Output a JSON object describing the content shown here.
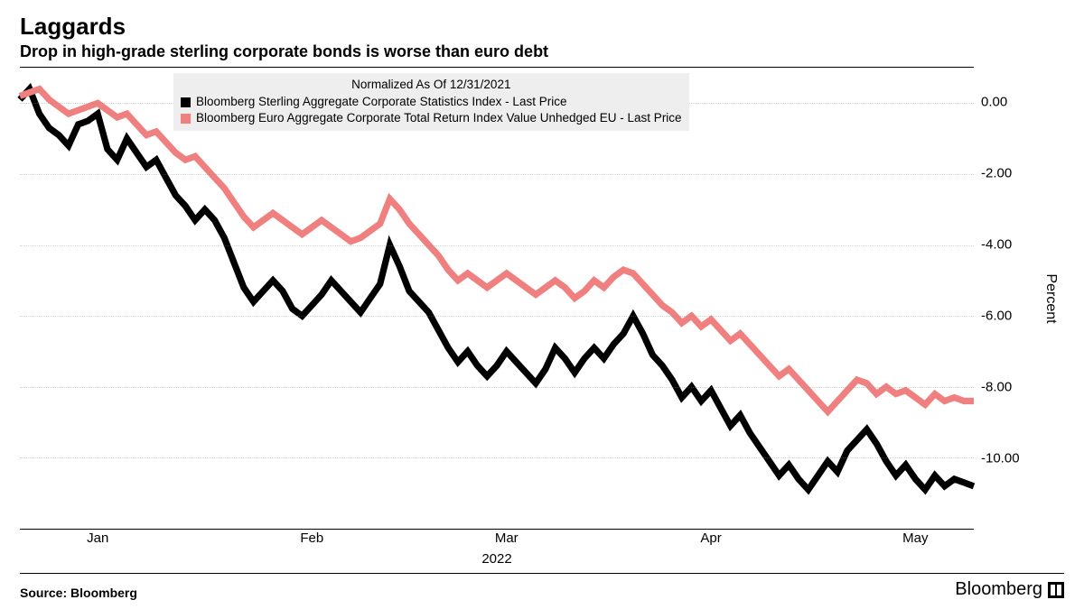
{
  "title": "Laggards",
  "subtitle": "Drop in high-grade sterling corporate bonds is worse than euro debt",
  "legend": {
    "title": "Normalized As Of 12/31/2021",
    "series": [
      {
        "label": "Bloomberg Sterling Aggregate Corporate Statistics Index - Last Price",
        "color": "#000000"
      },
      {
        "label": "Bloomberg Euro Aggregate Corporate Total Return Index Value Unhedged EU - Last Price",
        "color": "#f08080"
      }
    ]
  },
  "chart": {
    "type": "line",
    "y_axis": {
      "label": "Percent",
      "min": -12.0,
      "max": 1.0,
      "ticks": [
        0.0,
        -2.0,
        -4.0,
        -6.0,
        -8.0,
        -10.0
      ],
      "tick_format": "fixed2"
    },
    "x_axis": {
      "min": 0,
      "max": 98,
      "ticks": [
        {
          "pos": 8,
          "label": "Jan"
        },
        {
          "pos": 30,
          "label": "Feb"
        },
        {
          "pos": 50,
          "label": "Mar"
        },
        {
          "pos": 71,
          "label": "Apr"
        },
        {
          "pos": 92,
          "label": "May"
        }
      ],
      "year_label": "2022"
    },
    "grid_color": "#888888",
    "background_color": "#ffffff",
    "series": [
      {
        "name": "sterling",
        "color": "#000000",
        "line_width": 1.8,
        "values": [
          0.1,
          0.4,
          -0.3,
          -0.7,
          -0.9,
          -1.2,
          -0.6,
          -0.5,
          -0.3,
          -1.3,
          -1.6,
          -1.0,
          -1.4,
          -1.8,
          -1.6,
          -2.1,
          -2.6,
          -2.9,
          -3.3,
          -3.0,
          -3.3,
          -3.8,
          -4.5,
          -5.2,
          -5.6,
          -5.3,
          -5.0,
          -5.3,
          -5.8,
          -6.0,
          -5.7,
          -5.4,
          -5.0,
          -5.3,
          -5.6,
          -5.9,
          -5.5,
          -5.1,
          -4.0,
          -4.6,
          -5.3,
          -5.6,
          -5.9,
          -6.4,
          -6.9,
          -7.3,
          -7.0,
          -7.4,
          -7.7,
          -7.4,
          -7.0,
          -7.3,
          -7.6,
          -7.9,
          -7.5,
          -6.9,
          -7.2,
          -7.6,
          -7.2,
          -6.9,
          -7.2,
          -6.8,
          -6.5,
          -6.0,
          -6.5,
          -7.1,
          -7.4,
          -7.8,
          -8.3,
          -8.0,
          -8.4,
          -8.1,
          -8.6,
          -9.1,
          -8.8,
          -9.3,
          -9.7,
          -10.1,
          -10.5,
          -10.2,
          -10.6,
          -10.9,
          -10.5,
          -10.1,
          -10.4,
          -9.8,
          -9.5,
          -9.2,
          -9.6,
          -10.1,
          -10.5,
          -10.2,
          -10.6,
          -10.9,
          -10.5,
          -10.8,
          -10.6,
          -10.7,
          -10.8
        ]
      },
      {
        "name": "euro",
        "color": "#f08080",
        "line_width": 1.8,
        "values": [
          0.2,
          0.3,
          0.4,
          0.1,
          -0.1,
          -0.3,
          -0.2,
          -0.1,
          0.0,
          -0.2,
          -0.4,
          -0.3,
          -0.6,
          -0.9,
          -0.8,
          -1.1,
          -1.4,
          -1.6,
          -1.5,
          -1.8,
          -2.1,
          -2.4,
          -2.8,
          -3.2,
          -3.5,
          -3.3,
          -3.1,
          -3.3,
          -3.5,
          -3.7,
          -3.5,
          -3.3,
          -3.5,
          -3.7,
          -3.9,
          -3.8,
          -3.6,
          -3.4,
          -2.7,
          -3.0,
          -3.4,
          -3.7,
          -4.0,
          -4.3,
          -4.7,
          -5.0,
          -4.8,
          -5.0,
          -5.2,
          -5.0,
          -4.8,
          -5.0,
          -5.2,
          -5.4,
          -5.2,
          -5.0,
          -5.2,
          -5.5,
          -5.3,
          -5.0,
          -5.2,
          -4.9,
          -4.7,
          -4.8,
          -5.1,
          -5.4,
          -5.7,
          -5.9,
          -6.2,
          -6.0,
          -6.3,
          -6.1,
          -6.4,
          -6.7,
          -6.5,
          -6.8,
          -7.1,
          -7.4,
          -7.7,
          -7.5,
          -7.8,
          -8.1,
          -8.4,
          -8.7,
          -8.4,
          -8.1,
          -7.8,
          -7.9,
          -8.2,
          -8.0,
          -8.2,
          -8.1,
          -8.3,
          -8.5,
          -8.2,
          -8.4,
          -8.3,
          -8.4,
          -8.4
        ]
      }
    ]
  },
  "footer": {
    "source": "Source: Bloomberg",
    "brand": "Bloomberg"
  }
}
